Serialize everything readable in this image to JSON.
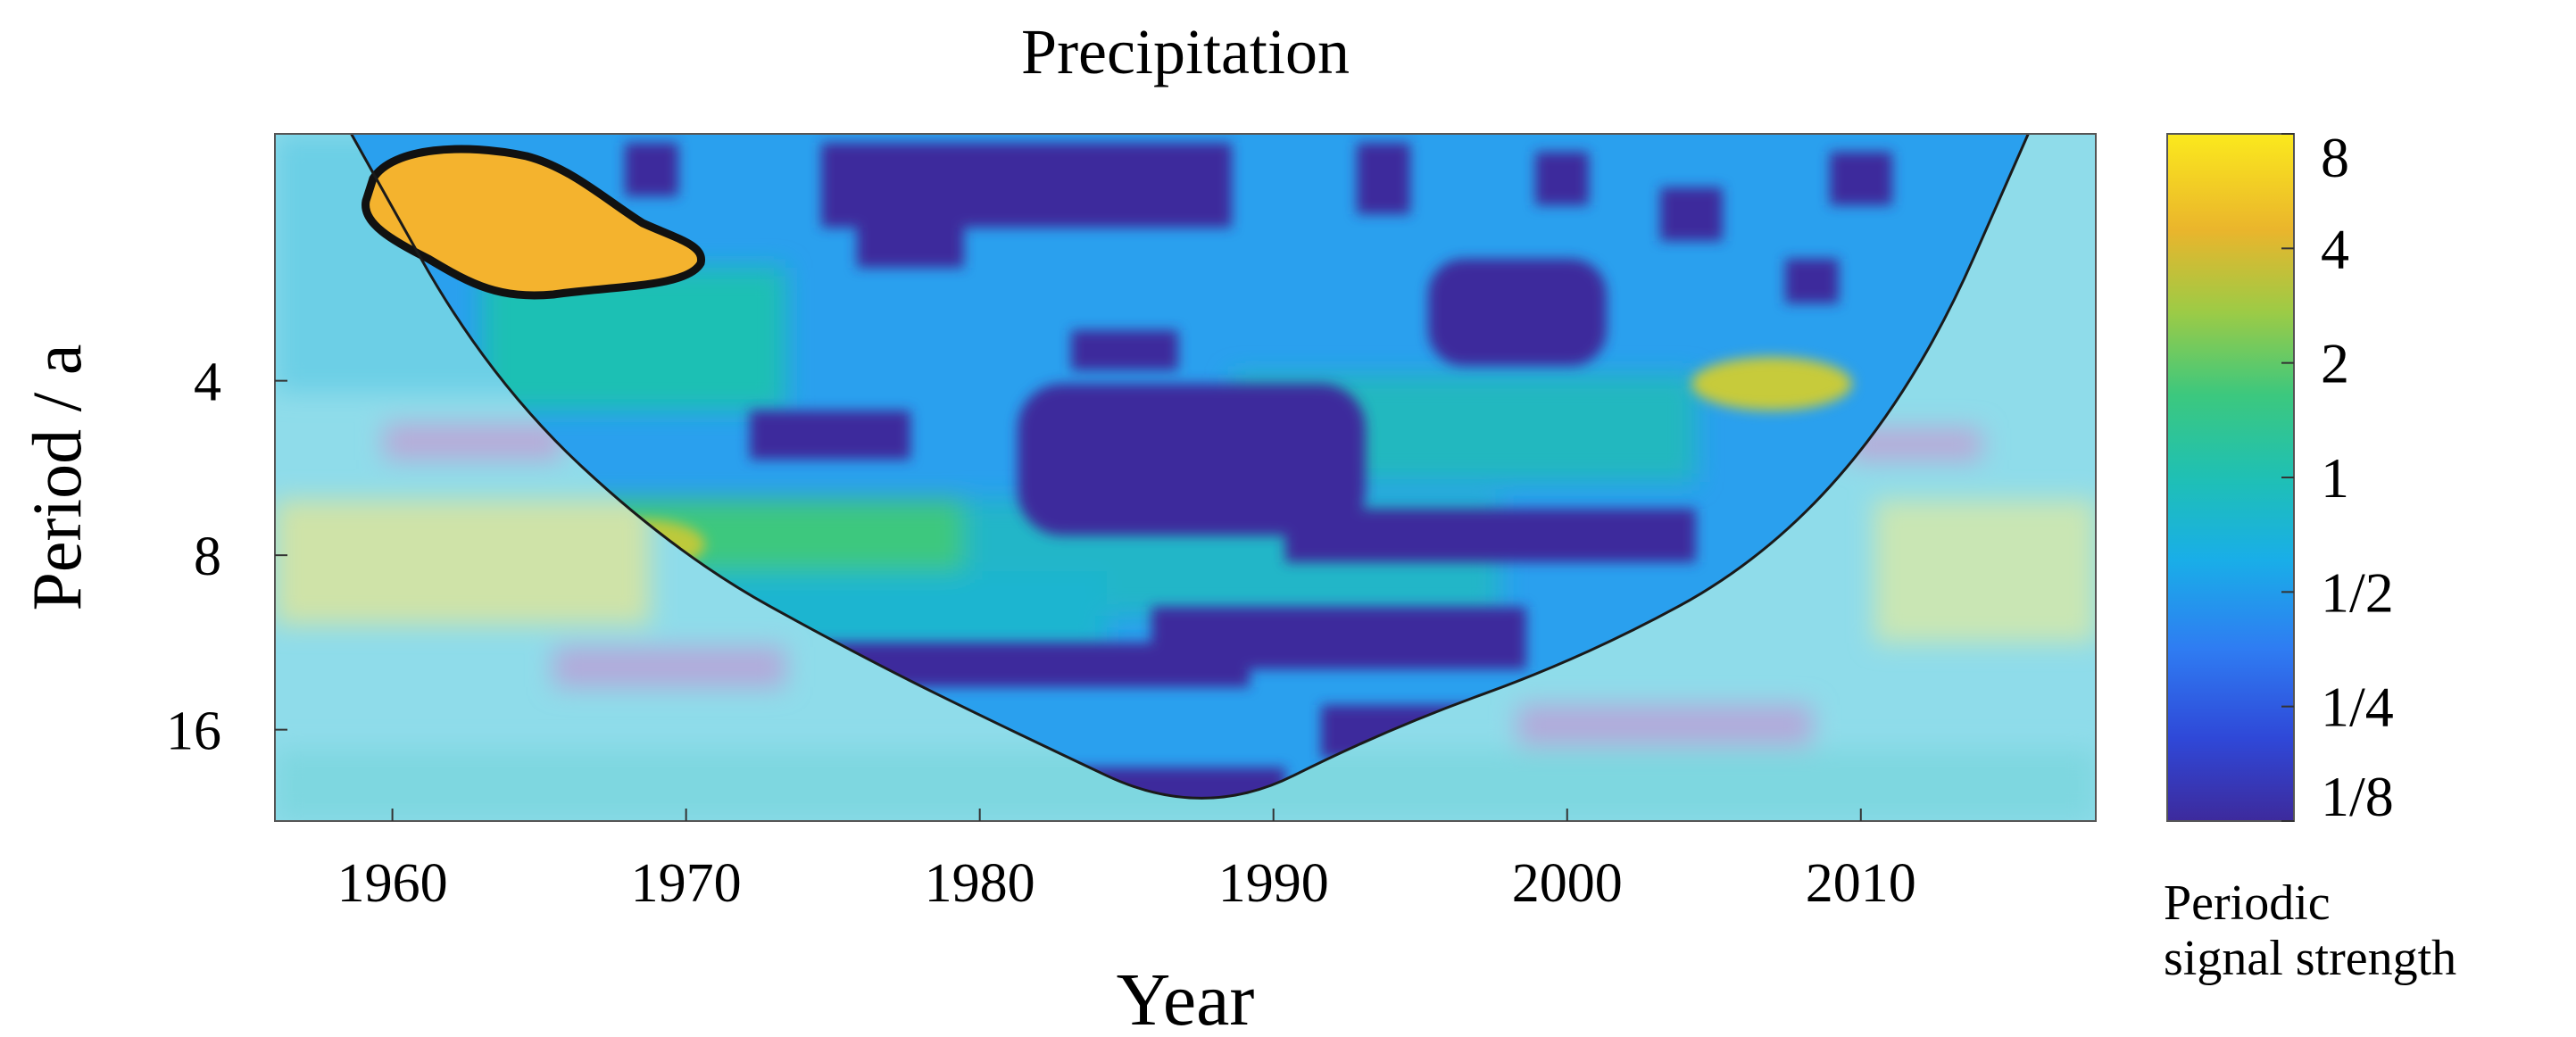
{
  "chart_data": {
    "type": "heatmap",
    "title": "Precipitation",
    "xlabel": "Year",
    "ylabel": "Period / a",
    "x_ticks": [
      "1960",
      "1970",
      "1980",
      "1990",
      "2000",
      "2010"
    ],
    "x_tick_values": [
      1960,
      1970,
      1980,
      1990,
      2000,
      2010
    ],
    "xlim": [
      1956,
      2018
    ],
    "y_ticks": [
      "4",
      "8",
      "16"
    ],
    "y_tick_values": [
      4,
      8,
      16
    ],
    "ylim": [
      1.5,
      23
    ],
    "y_scale": "log2",
    "y_inverted": true,
    "colorbar": {
      "label": "Periodic signal strength",
      "scale": "log2",
      "tick_labels": [
        "8",
        "4",
        "2",
        "1",
        "1/2",
        "1/4",
        "1/8"
      ],
      "tick_values": [
        8,
        4,
        2,
        1,
        0.5,
        0.25,
        0.125
      ],
      "colors": [
        "#3d2a9c",
        "#2f5cf2",
        "#1aa0ee",
        "#1fbeb8",
        "#3cc87e",
        "#bcc93a",
        "#f5b529",
        "#fbe91d"
      ]
    },
    "cone_of_influence": [
      {
        "year": 1958.6,
        "period": 1.5
      },
      {
        "year": 1963.3,
        "period": 4
      },
      {
        "year": 1969.7,
        "period": 8
      },
      {
        "year": 1976.0,
        "period": 12
      },
      {
        "year": 1981.0,
        "period": 16
      },
      {
        "year": 1987.6,
        "period": 23
      },
      {
        "year": 1993.8,
        "period": 16
      },
      {
        "year": 2000.6,
        "period": 12
      },
      {
        "year": 2007.0,
        "period": 8
      },
      {
        "year": 2012.0,
        "period": 4
      },
      {
        "year": 2015.7,
        "period": 1.5
      }
    ],
    "significant_region": {
      "years": [
        1959.5,
        1971.5
      ],
      "periods": [
        1.6,
        3.2
      ],
      "strength_range": [
        4,
        8
      ]
    },
    "features": [
      {
        "year": 1965,
        "period": 2.2,
        "strength": 6
      },
      {
        "year": 1984,
        "period": 1.9,
        "strength": 0.125
      },
      {
        "year": 1998,
        "period": 3.6,
        "strength": 0.125
      },
      {
        "year": 1985,
        "period": 7,
        "strength": 0.125
      },
      {
        "year": 2006,
        "period": 4.8,
        "strength": 2
      },
      {
        "year": 1970,
        "period": 8.6,
        "strength": 2
      },
      {
        "year": 1990,
        "period": 12,
        "strength": 0.125
      },
      {
        "year": 1993,
        "period": 16,
        "strength": 0.125
      },
      {
        "year": 1962,
        "period": 8.8,
        "strength": 1
      },
      {
        "year": 2013,
        "period": 9.5,
        "strength": 1
      },
      {
        "year": 1960,
        "period": 20,
        "strength": 0.5
      }
    ]
  }
}
